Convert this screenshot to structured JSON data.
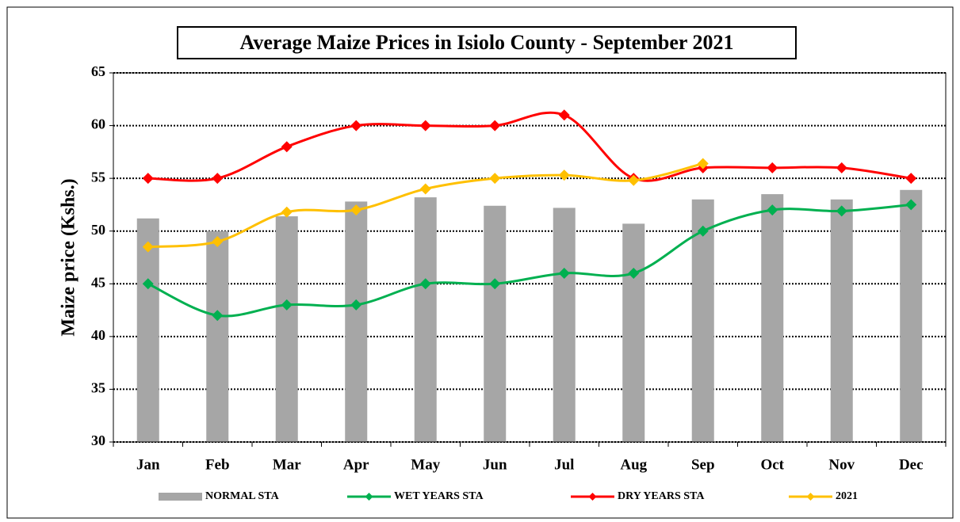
{
  "chart_data": {
    "type": "combo",
    "title": "Average Maize Prices in Isiolo County - September 2021",
    "y_label": "Maize price (Kshs.)",
    "categories": [
      "Jan",
      "Feb",
      "Mar",
      "Apr",
      "May",
      "Jun",
      "Jul",
      "Aug",
      "Sep",
      "Oct",
      "Nov",
      "Dec"
    ],
    "series": [
      {
        "name": "NORMAL STA",
        "kind": "bar",
        "color": "#a6a6a6",
        "values": [
          51.2,
          50.0,
          51.4,
          52.8,
          53.2,
          52.4,
          52.2,
          50.7,
          53.0,
          53.5,
          53.0,
          53.9
        ]
      },
      {
        "name": "WET YEARS STA",
        "kind": "line",
        "color": "#00b050",
        "values": [
          45,
          42,
          43,
          43,
          45,
          45,
          46,
          46,
          50,
          52,
          51.9,
          52.5
        ]
      },
      {
        "name": "DRY YEARS STA",
        "kind": "line",
        "color": "#ff0000",
        "values": [
          55,
          55,
          58,
          60,
          60,
          60,
          61,
          55,
          56,
          56,
          56,
          55
        ]
      },
      {
        "name": "2021",
        "kind": "line",
        "color": "#ffc000",
        "values": [
          48.5,
          49,
          51.8,
          52,
          54,
          55,
          55.3,
          54.8,
          56.4,
          null,
          null,
          null
        ]
      }
    ],
    "ylim": [
      30,
      65
    ],
    "yticks": [
      30,
      35,
      40,
      45,
      50,
      55,
      60,
      65
    ],
    "grid": true,
    "legend": "bottom"
  }
}
